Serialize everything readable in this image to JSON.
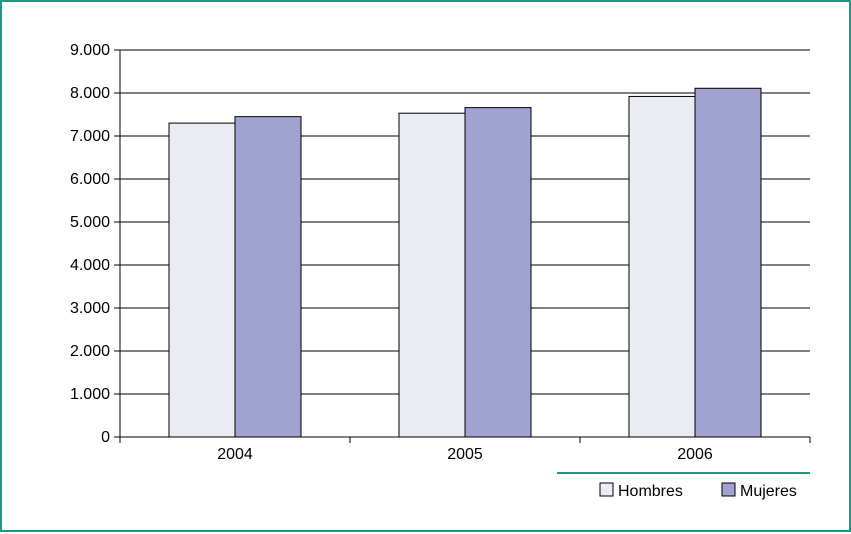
{
  "chart_data": {
    "type": "bar",
    "title": "",
    "xlabel": "",
    "ylabel": "",
    "categories": [
      "2004",
      "2005",
      "2006"
    ],
    "series": [
      {
        "name": "Hombres",
        "values": [
          7300,
          7530,
          7920
        ]
      },
      {
        "name": "Mujeres",
        "values": [
          7450,
          7660,
          8110
        ]
      }
    ],
    "ylim": [
      0,
      9000
    ],
    "y_ticks": [
      "0",
      "1.000",
      "2.000",
      "3.000",
      "4.000",
      "5.000",
      "6.000",
      "7.000",
      "8.000",
      "9.000"
    ],
    "grid": true,
    "legend_position": "bottom-right",
    "colors": {
      "Hombres": "#ebebf3",
      "Mujeres": "#a0a2d0",
      "frame": "#1a9a85",
      "legend_rule": "#1a9a85"
    }
  }
}
